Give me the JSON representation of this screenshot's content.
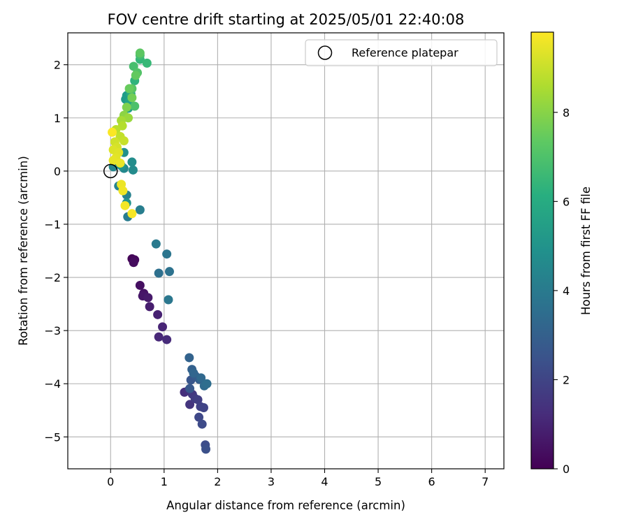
{
  "chart_data": {
    "type": "scatter",
    "title": "FOV centre drift starting at 2025/05/01 22:40:08",
    "xlabel": "Angular distance from reference (arcmin)",
    "ylabel": "Rotation from reference (arcmin)",
    "xlim": [
      -0.8,
      7.35
    ],
    "ylim": [
      -5.6,
      2.6
    ],
    "x_ticks": [
      0,
      1,
      2,
      3,
      4,
      5,
      6,
      7
    ],
    "y_ticks": [
      2,
      1,
      0,
      -1,
      -2,
      -3,
      -4,
      -5
    ],
    "grid": true,
    "legend": {
      "position": "top-right",
      "entries": [
        "Reference platepar"
      ]
    },
    "reference_point": {
      "x": 0,
      "y": 0
    },
    "colorbar": {
      "label": "Hours from first FF file",
      "colormap": "viridis",
      "range": [
        0,
        9.8
      ],
      "ticks": [
        0,
        2,
        4,
        6,
        8
      ]
    },
    "points": [
      {
        "x": 0.4,
        "y": -1.65,
        "c": 0.1
      },
      {
        "x": 0.45,
        "y": -1.67,
        "c": 0.2
      },
      {
        "x": 0.43,
        "y": -1.72,
        "c": 0.3
      },
      {
        "x": 0.55,
        "y": -2.15,
        "c": 0.4
      },
      {
        "x": 0.62,
        "y": -2.3,
        "c": 0.5
      },
      {
        "x": 0.6,
        "y": -2.35,
        "c": 0.6
      },
      {
        "x": 0.7,
        "y": -2.38,
        "c": 0.7
      },
      {
        "x": 0.73,
        "y": -2.55,
        "c": 0.8
      },
      {
        "x": 0.88,
        "y": -2.7,
        "c": 0.9
      },
      {
        "x": 0.97,
        "y": -2.93,
        "c": 1.0
      },
      {
        "x": 0.9,
        "y": -3.12,
        "c": 1.1
      },
      {
        "x": 1.05,
        "y": -3.17,
        "c": 1.2
      },
      {
        "x": 1.38,
        "y": -4.16,
        "c": 1.3
      },
      {
        "x": 1.45,
        "y": -4.13,
        "c": 1.4
      },
      {
        "x": 1.48,
        "y": -4.39,
        "c": 1.5
      },
      {
        "x": 1.53,
        "y": -4.2,
        "c": 1.6
      },
      {
        "x": 1.58,
        "y": -4.28,
        "c": 1.7
      },
      {
        "x": 1.63,
        "y": -4.3,
        "c": 1.8
      },
      {
        "x": 1.68,
        "y": -4.43,
        "c": 1.9
      },
      {
        "x": 1.74,
        "y": -4.45,
        "c": 2.0
      },
      {
        "x": 1.65,
        "y": -4.63,
        "c": 2.1
      },
      {
        "x": 1.71,
        "y": -4.76,
        "c": 2.2
      },
      {
        "x": 1.77,
        "y": -5.15,
        "c": 2.3
      },
      {
        "x": 1.78,
        "y": -5.23,
        "c": 2.4
      },
      {
        "x": 1.5,
        "y": -3.93,
        "c": 2.6
      },
      {
        "x": 1.48,
        "y": -4.09,
        "c": 2.7
      },
      {
        "x": 1.58,
        "y": -3.85,
        "c": 2.8
      },
      {
        "x": 1.66,
        "y": -3.92,
        "c": 2.9
      },
      {
        "x": 1.52,
        "y": -3.73,
        "c": 3.0
      },
      {
        "x": 1.47,
        "y": -3.51,
        "c": 3.1
      },
      {
        "x": 1.55,
        "y": -3.8,
        "c": 3.2
      },
      {
        "x": 1.69,
        "y": -3.89,
        "c": 3.3
      },
      {
        "x": 1.75,
        "y": -4.04,
        "c": 3.4
      },
      {
        "x": 1.8,
        "y": -4.0,
        "c": 3.5
      },
      {
        "x": 0.9,
        "y": -1.92,
        "c": 3.6
      },
      {
        "x": 1.1,
        "y": -1.89,
        "c": 3.7
      },
      {
        "x": 1.05,
        "y": -1.56,
        "c": 3.8
      },
      {
        "x": 1.08,
        "y": -2.42,
        "c": 3.9
      },
      {
        "x": 0.85,
        "y": -1.37,
        "c": 4.0
      },
      {
        "x": 0.32,
        "y": -0.86,
        "c": 4.1
      },
      {
        "x": 0.55,
        "y": -0.73,
        "c": 4.2
      },
      {
        "x": 0.3,
        "y": -0.45,
        "c": 4.3
      },
      {
        "x": 0.15,
        "y": -0.28,
        "c": 4.4
      },
      {
        "x": 0.05,
        "y": 0.08,
        "c": 4.5
      },
      {
        "x": 0.25,
        "y": 0.05,
        "c": 4.6
      },
      {
        "x": 0.42,
        "y": 0.02,
        "c": 4.7
      },
      {
        "x": 0.4,
        "y": 0.17,
        "c": 4.8
      },
      {
        "x": 0.25,
        "y": 0.35,
        "c": 4.9
      },
      {
        "x": 0.3,
        "y": -0.6,
        "c": 5.0
      },
      {
        "x": 0.2,
        "y": 0.1,
        "c": 5.1
      },
      {
        "x": 0.28,
        "y": 1.35,
        "c": 5.3
      },
      {
        "x": 0.3,
        "y": 1.42,
        "c": 5.4
      },
      {
        "x": 0.33,
        "y": 1.18,
        "c": 5.5
      },
      {
        "x": 0.35,
        "y": 1.3,
        "c": 5.7
      },
      {
        "x": 0.38,
        "y": 1.45,
        "c": 6.0
      },
      {
        "x": 0.45,
        "y": 1.7,
        "c": 6.3
      },
      {
        "x": 0.55,
        "y": 2.1,
        "c": 6.5
      },
      {
        "x": 0.68,
        "y": 2.03,
        "c": 6.6
      },
      {
        "x": 0.55,
        "y": 2.18,
        "c": 6.8
      },
      {
        "x": 0.43,
        "y": 1.97,
        "c": 6.9
      },
      {
        "x": 0.45,
        "y": 1.22,
        "c": 7.0
      },
      {
        "x": 0.5,
        "y": 1.85,
        "c": 7.1
      },
      {
        "x": 0.4,
        "y": 1.55,
        "c": 7.2
      },
      {
        "x": 0.55,
        "y": 2.22,
        "c": 7.3
      },
      {
        "x": 0.47,
        "y": 1.8,
        "c": 7.4
      },
      {
        "x": 0.35,
        "y": 1.55,
        "c": 7.5
      },
      {
        "x": 0.4,
        "y": 1.38,
        "c": 7.7
      },
      {
        "x": 0.3,
        "y": 1.2,
        "c": 7.9
      },
      {
        "x": 0.25,
        "y": 1.05,
        "c": 8.1
      },
      {
        "x": 0.33,
        "y": 1.0,
        "c": 8.3
      },
      {
        "x": 0.2,
        "y": 0.95,
        "c": 8.5
      },
      {
        "x": 0.22,
        "y": 0.85,
        "c": 8.7
      },
      {
        "x": 0.1,
        "y": 0.78,
        "c": 8.8
      },
      {
        "x": 0.18,
        "y": 0.65,
        "c": 8.9
      },
      {
        "x": 0.25,
        "y": 0.57,
        "c": 9.0
      },
      {
        "x": 0.08,
        "y": 0.55,
        "c": 9.1
      },
      {
        "x": 0.12,
        "y": 0.45,
        "c": 9.2
      },
      {
        "x": 0.05,
        "y": 0.4,
        "c": 9.3
      },
      {
        "x": 0.15,
        "y": 0.35,
        "c": 9.35
      },
      {
        "x": 0.1,
        "y": 0.25,
        "c": 9.4
      },
      {
        "x": 0.05,
        "y": 0.2,
        "c": 9.45
      },
      {
        "x": 0.18,
        "y": 0.15,
        "c": 9.5
      },
      {
        "x": 0.2,
        "y": -0.25,
        "c": 9.55
      },
      {
        "x": 0.23,
        "y": -0.37,
        "c": 9.6
      },
      {
        "x": 0.27,
        "y": -0.65,
        "c": 9.65
      },
      {
        "x": 0.4,
        "y": -0.8,
        "c": 9.7
      },
      {
        "x": 0.03,
        "y": 0.73,
        "c": 9.75
      }
    ]
  }
}
